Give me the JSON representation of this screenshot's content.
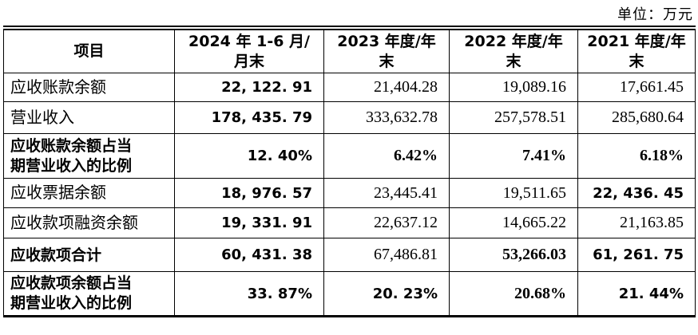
{
  "unit_label": "单位：万元",
  "table": {
    "columns": [
      {
        "label": "项目"
      },
      {
        "label": "2024 年 1-6 月/\n月末"
      },
      {
        "label": "2023 年度/年\n末"
      },
      {
        "label": "2022 年度/年\n末"
      },
      {
        "label": "2021 年度/年\n末"
      }
    ],
    "rows": [
      {
        "label": "应收账款余额",
        "values": [
          "22, 122. 91",
          "21,404.28",
          "19,089.16",
          "17,661.45"
        ]
      },
      {
        "label": "营业收入",
        "values": [
          "178, 435. 79",
          "333,632.78",
          "257,578.51",
          "285,680.64"
        ]
      },
      {
        "label": "应收账款余额占当\n期营业收入的比例",
        "values": [
          "12. 40%",
          "6.42%",
          "7.41%",
          "6.18%"
        ]
      },
      {
        "label": "应收票据余额",
        "values": [
          "18, 976. 57",
          "23,445.41",
          "19,511.65",
          "22, 436. 45"
        ]
      },
      {
        "label": "应收款项融资余额",
        "values": [
          "19, 331. 91",
          "22,637.12",
          "14,665.22",
          "21,163.85"
        ]
      },
      {
        "label": "应收款项合计",
        "values": [
          "60, 431. 38",
          "67,486.81",
          "53,266.03",
          "61, 261. 75"
        ]
      },
      {
        "label": "应收款项余额占当\n期营业收入的比例",
        "values": [
          "33. 87%",
          "20. 23%",
          "20.68%",
          "21. 44%"
        ]
      }
    ]
  }
}
